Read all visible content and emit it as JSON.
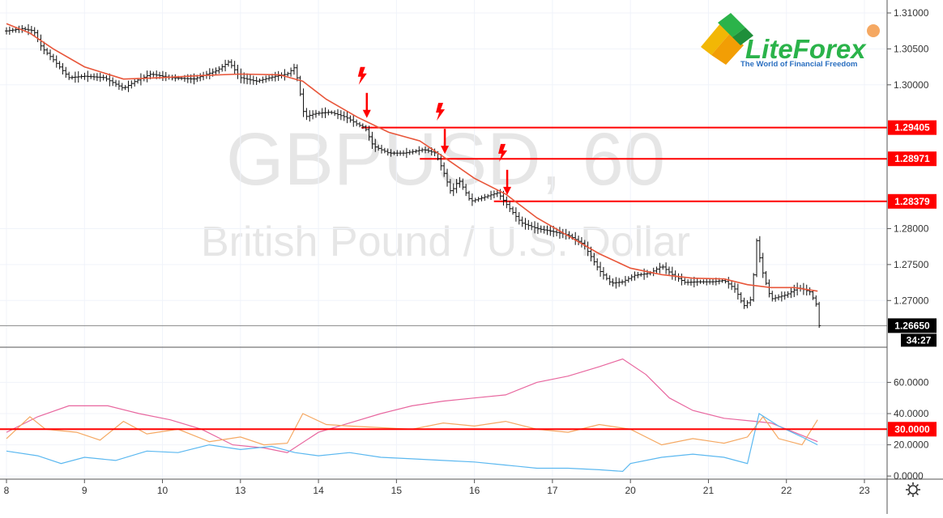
{
  "chart_data": [
    {
      "type": "line",
      "watermark": {
        "symbol": "GBPUSD, 60",
        "description": "British Pound / U.S. Dollar"
      },
      "logo": {
        "name": "LiteForex",
        "tagline": "The World of Financial Freedom"
      },
      "x_labels": [
        {
          "label": "8",
          "t": 0.0
        },
        {
          "label": "9",
          "t": 1.0
        },
        {
          "label": "10",
          "t": 2.0
        },
        {
          "label": "13",
          "t": 3.0
        },
        {
          "label": "14",
          "t": 4.0
        },
        {
          "label": "15",
          "t": 5.0
        },
        {
          "label": "16",
          "t": 6.0
        },
        {
          "label": "17",
          "t": 7.0
        },
        {
          "label": "20",
          "t": 8.0
        },
        {
          "label": "21",
          "t": 9.0
        },
        {
          "label": "22",
          "t": 10.0
        },
        {
          "label": "23",
          "t": 11.0
        }
      ],
      "ylim": [
        1.2635,
        1.3118
      ],
      "y_ticks": [
        "1.31000",
        "1.30500",
        "1.30000",
        "1.28000",
        "1.27500",
        "1.27000"
      ],
      "price_path": [
        [
          0.0,
          1.3075
        ],
        [
          0.2,
          1.3078
        ],
        [
          0.35,
          1.3075
        ],
        [
          0.45,
          1.3052
        ],
        [
          0.6,
          1.3035
        ],
        [
          0.8,
          1.301
        ],
        [
          1.0,
          1.3012
        ],
        [
          1.25,
          1.301
        ],
        [
          1.5,
          1.2995
        ],
        [
          1.65,
          1.3005
        ],
        [
          1.85,
          1.3015
        ],
        [
          2.1,
          1.301
        ],
        [
          2.4,
          1.3008
        ],
        [
          2.7,
          1.302
        ],
        [
          2.85,
          1.3032
        ],
        [
          3.0,
          1.301
        ],
        [
          3.2,
          1.3005
        ],
        [
          3.45,
          1.3012
        ],
        [
          3.6,
          1.3015
        ],
        [
          3.7,
          1.3025
        ],
        [
          3.78,
          1.298
        ],
        [
          3.82,
          1.2955
        ],
        [
          3.95,
          1.296
        ],
        [
          4.15,
          1.2962
        ],
        [
          4.35,
          1.2955
        ],
        [
          4.5,
          1.2945
        ],
        [
          4.6,
          1.294
        ],
        [
          4.7,
          1.2915
        ],
        [
          4.9,
          1.2905
        ],
        [
          5.1,
          1.2905
        ],
        [
          5.35,
          1.291
        ],
        [
          5.5,
          1.2905
        ],
        [
          5.6,
          1.288
        ],
        [
          5.7,
          1.285
        ],
        [
          5.8,
          1.2868
        ],
        [
          5.95,
          1.2838
        ],
        [
          6.1,
          1.2843
        ],
        [
          6.3,
          1.285
        ],
        [
          6.45,
          1.2828
        ],
        [
          6.6,
          1.2808
        ],
        [
          6.8,
          1.28
        ],
        [
          7.0,
          1.2796
        ],
        [
          7.2,
          1.2791
        ],
        [
          7.4,
          1.2778
        ],
        [
          7.6,
          1.2742
        ],
        [
          7.75,
          1.2724
        ],
        [
          7.9,
          1.2726
        ],
        [
          8.05,
          1.2735
        ],
        [
          8.25,
          1.2738
        ],
        [
          8.4,
          1.2748
        ],
        [
          8.55,
          1.2735
        ],
        [
          8.7,
          1.2725
        ],
        [
          8.85,
          1.2726
        ],
        [
          9.05,
          1.2726
        ],
        [
          9.2,
          1.2728
        ],
        [
          9.35,
          1.2715
        ],
        [
          9.45,
          1.2692
        ],
        [
          9.55,
          1.2702
        ],
        [
          9.62,
          1.2785
        ],
        [
          9.68,
          1.2745
        ],
        [
          9.8,
          1.2702
        ],
        [
          10.0,
          1.2708
        ],
        [
          10.15,
          1.2718
        ],
        [
          10.3,
          1.2712
        ],
        [
          10.38,
          1.2695
        ],
        [
          10.42,
          1.2665
        ]
      ],
      "ma_path": [
        [
          0.0,
          1.3085
        ],
        [
          0.3,
          1.3072
        ],
        [
          0.6,
          1.305
        ],
        [
          1.0,
          1.3025
        ],
        [
          1.5,
          1.3008
        ],
        [
          2.0,
          1.301
        ],
        [
          2.5,
          1.3013
        ],
        [
          3.0,
          1.3015
        ],
        [
          3.5,
          1.3014
        ],
        [
          3.8,
          1.3005
        ],
        [
          4.1,
          1.298
        ],
        [
          4.5,
          1.2955
        ],
        [
          4.9,
          1.2934
        ],
        [
          5.3,
          1.2922
        ],
        [
          5.6,
          1.29
        ],
        [
          6.0,
          1.287
        ],
        [
          6.4,
          1.2848
        ],
        [
          6.8,
          1.2815
        ],
        [
          7.2,
          1.279
        ],
        [
          7.6,
          1.2765
        ],
        [
          8.0,
          1.2745
        ],
        [
          8.4,
          1.2736
        ],
        [
          8.8,
          1.2731
        ],
        [
          9.2,
          1.273
        ],
        [
          9.5,
          1.2722
        ],
        [
          9.8,
          1.2718
        ],
        [
          10.1,
          1.2718
        ],
        [
          10.4,
          1.2713
        ]
      ],
      "levels": [
        {
          "value": 1.29405,
          "label": "1.29405",
          "from_t": 4.55
        },
        {
          "value": 1.28971,
          "label": "1.28971",
          "from_t": 5.3
        },
        {
          "value": 1.28379,
          "label": "1.28379",
          "from_t": 6.25
        }
      ],
      "signals": [
        {
          "t": 4.62,
          "price": 1.2955
        },
        {
          "t": 5.62,
          "price": 1.2905
        },
        {
          "t": 6.42,
          "price": 1.2848
        }
      ],
      "current_price": {
        "value": 1.2665,
        "label": "1.26650",
        "countdown": "34:27"
      },
      "colors": {
        "price": "#111111",
        "ma": "#e8563a",
        "level": "#ff0000",
        "signal": "#ff0000"
      }
    },
    {
      "type": "line",
      "ylim": [
        -2,
        82
      ],
      "y_ticks": [
        "60.0000",
        "40.0000",
        "20.0000",
        "0.0000"
      ],
      "level": {
        "value": 30,
        "label": "30.0000"
      },
      "series": [
        {
          "color": "#e8679f",
          "values": [
            [
              0.0,
              28
            ],
            [
              0.4,
              38
            ],
            [
              0.8,
              45
            ],
            [
              1.3,
              45
            ],
            [
              1.7,
              40
            ],
            [
              2.1,
              36
            ],
            [
              2.5,
              30
            ],
            [
              2.9,
              20
            ],
            [
              3.3,
              18
            ],
            [
              3.6,
              15
            ],
            [
              4.0,
              28
            ],
            [
              4.4,
              34
            ],
            [
              4.8,
              40
            ],
            [
              5.2,
              45
            ],
            [
              5.6,
              48
            ],
            [
              6.0,
              50
            ],
            [
              6.4,
              52
            ],
            [
              6.8,
              60
            ],
            [
              7.2,
              64
            ],
            [
              7.6,
              70
            ],
            [
              7.9,
              75
            ],
            [
              8.2,
              65
            ],
            [
              8.5,
              50
            ],
            [
              8.8,
              42
            ],
            [
              9.2,
              37
            ],
            [
              9.6,
              35
            ],
            [
              9.8,
              34
            ],
            [
              10.1,
              28
            ],
            [
              10.4,
              22
            ]
          ]
        },
        {
          "color": "#f5a862",
          "values": [
            [
              0.0,
              24
            ],
            [
              0.3,
              38
            ],
            [
              0.5,
              30
            ],
            [
              0.9,
              28
            ],
            [
              1.2,
              23
            ],
            [
              1.5,
              35
            ],
            [
              1.8,
              27
            ],
            [
              2.2,
              30
            ],
            [
              2.6,
              22
            ],
            [
              3.0,
              25
            ],
            [
              3.3,
              20
            ],
            [
              3.6,
              21
            ],
            [
              3.8,
              40
            ],
            [
              4.1,
              33
            ],
            [
              4.4,
              32
            ],
            [
              4.8,
              31
            ],
            [
              5.2,
              30
            ],
            [
              5.6,
              34
            ],
            [
              6.0,
              32
            ],
            [
              6.4,
              35
            ],
            [
              6.8,
              30
            ],
            [
              7.2,
              28
            ],
            [
              7.6,
              33
            ],
            [
              8.0,
              30
            ],
            [
              8.4,
              20
            ],
            [
              8.8,
              24
            ],
            [
              9.2,
              21
            ],
            [
              9.5,
              25
            ],
            [
              9.7,
              38
            ],
            [
              9.9,
              24
            ],
            [
              10.2,
              20
            ],
            [
              10.4,
              36
            ]
          ]
        },
        {
          "color": "#5bb8f0",
          "values": [
            [
              0.0,
              16
            ],
            [
              0.4,
              13
            ],
            [
              0.7,
              8
            ],
            [
              1.0,
              12
            ],
            [
              1.4,
              10
            ],
            [
              1.8,
              16
            ],
            [
              2.2,
              15
            ],
            [
              2.6,
              20
            ],
            [
              3.0,
              17
            ],
            [
              3.4,
              19
            ],
            [
              3.7,
              15
            ],
            [
              4.0,
              13
            ],
            [
              4.4,
              15
            ],
            [
              4.8,
              12
            ],
            [
              5.2,
              11
            ],
            [
              5.6,
              10
            ],
            [
              6.0,
              9
            ],
            [
              6.4,
              7
            ],
            [
              6.8,
              5
            ],
            [
              7.2,
              5
            ],
            [
              7.6,
              4
            ],
            [
              7.9,
              3
            ],
            [
              8.0,
              8
            ],
            [
              8.4,
              12
            ],
            [
              8.8,
              14
            ],
            [
              9.2,
              12
            ],
            [
              9.5,
              8
            ],
            [
              9.65,
              40
            ],
            [
              9.9,
              32
            ],
            [
              10.2,
              25
            ],
            [
              10.4,
              20
            ]
          ]
        }
      ]
    }
  ]
}
